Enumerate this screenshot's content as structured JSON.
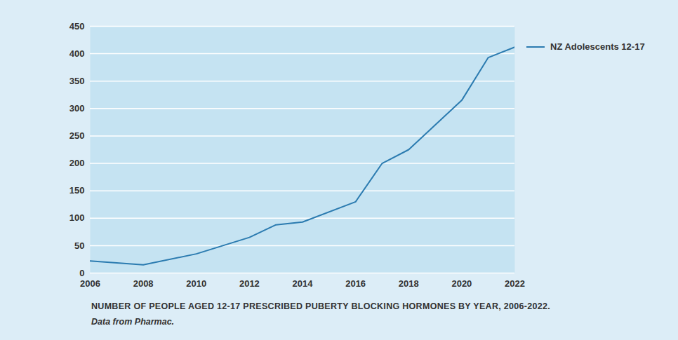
{
  "chart_data": {
    "type": "line",
    "title": "NUMBER OF PEOPLE AGED 12-17 PRESCRIBED PUBERTY BLOCKING HORMONES BY YEAR, 2006-2022.",
    "subtitle": "Data from Pharmac.",
    "x": [
      2006,
      2008,
      2010,
      2012,
      2013,
      2014,
      2016,
      2017,
      2018,
      2020,
      2021,
      2022
    ],
    "series": [
      {
        "name": "NZ Adolescents 12-17",
        "color": "#2b7bb0",
        "values": [
          22,
          15,
          35,
          65,
          88,
          93,
          130,
          200,
          225,
          315,
          393,
          412
        ]
      }
    ],
    "xlim": [
      2006,
      2022
    ],
    "xticks": [
      2006,
      2008,
      2010,
      2012,
      2014,
      2016,
      2018,
      2020,
      2022
    ],
    "ylim": [
      0,
      450
    ],
    "yticks": [
      0,
      50,
      100,
      150,
      200,
      250,
      300,
      350,
      400,
      450
    ],
    "grid": true,
    "legend": "right"
  }
}
